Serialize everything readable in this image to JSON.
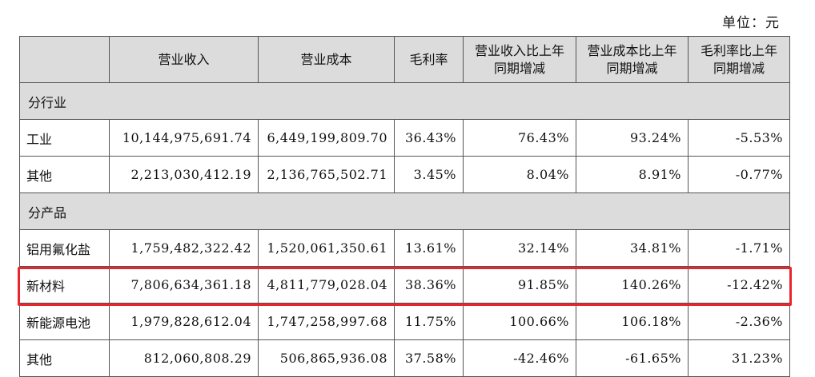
{
  "unit": "单位：元",
  "headers": [
    "",
    "营业收入",
    "营业成本",
    "毛利率",
    "营业收入比上年同期增减",
    "营业成本比上年同期增减",
    "毛利率比上年同期增减"
  ],
  "sections": [
    {
      "title": "分行业",
      "rows": [
        {
          "name": "工业",
          "revenue": "10,144,975,691.74",
          "cost": "6,449,199,809.70",
          "margin": "36.43%",
          "rev_chg": "76.43%",
          "cost_chg": "93.24%",
          "margin_chg": "-5.53%"
        },
        {
          "name": "其他",
          "revenue": "2,213,030,412.19",
          "cost": "2,136,765,502.71",
          "margin": "3.45%",
          "rev_chg": "8.04%",
          "cost_chg": "8.91%",
          "margin_chg": "-0.77%"
        }
      ]
    },
    {
      "title": "分产品",
      "rows": [
        {
          "name": "铝用氟化盐",
          "revenue": "1,759,482,322.42",
          "cost": "1,520,061,350.61",
          "margin": "13.61%",
          "rev_chg": "32.14%",
          "cost_chg": "34.81%",
          "margin_chg": "-1.71%"
        },
        {
          "name": "新材料",
          "revenue": "7,806,634,361.18",
          "cost": "4,811,779,028.04",
          "margin": "38.36%",
          "rev_chg": "91.85%",
          "cost_chg": "140.26%",
          "margin_chg": "-12.42%"
        },
        {
          "name": "新能源电池",
          "revenue": "1,979,828,612.04",
          "cost": "1,747,258,997.68",
          "margin": "11.75%",
          "rev_chg": "100.66%",
          "cost_chg": "106.18%",
          "margin_chg": "-2.36%"
        },
        {
          "name": "其他",
          "revenue": "812,060,808.29",
          "cost": "506,865,936.08",
          "margin": "37.58%",
          "rev_chg": "-42.46%",
          "cost_chg": "-61.65%",
          "margin_chg": "31.23%"
        }
      ]
    }
  ],
  "highlight_color": "#e8262d"
}
